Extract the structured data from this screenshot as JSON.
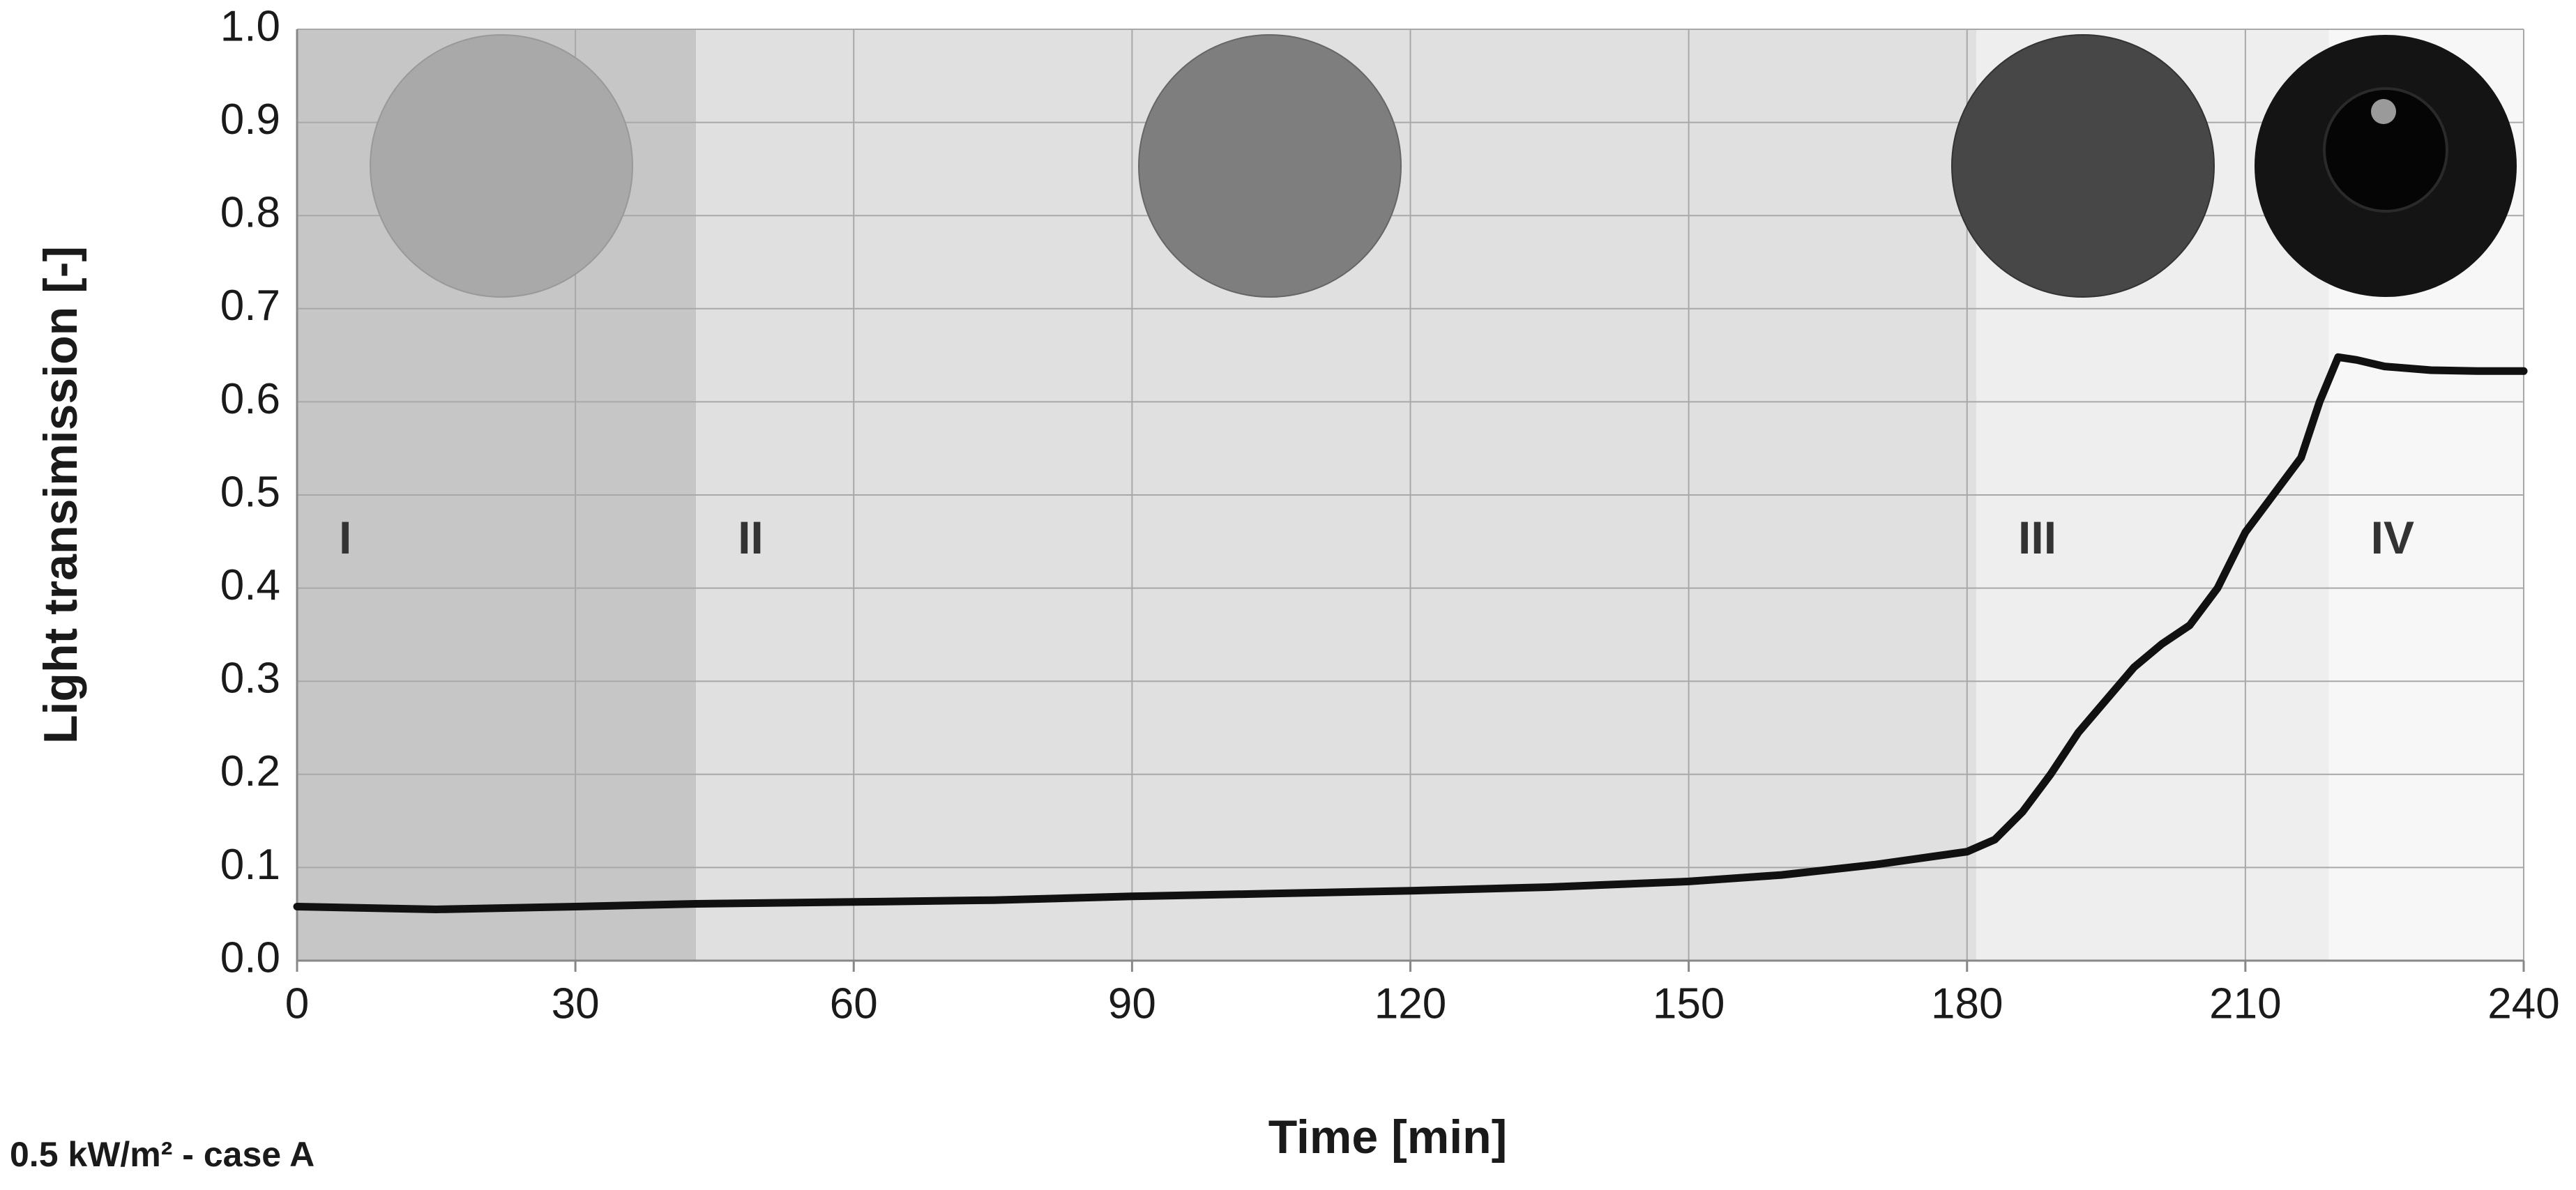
{
  "chart_data": {
    "type": "line",
    "caption": "0.5 kW/m² - case A",
    "xlabel": "Time [min]",
    "ylabel": "Light transimission [-]",
    "xlim": [
      0,
      240
    ],
    "xticks": [
      0,
      30,
      60,
      90,
      120,
      150,
      180,
      210,
      240
    ],
    "ylim": [
      0,
      1
    ],
    "yticks": [
      {
        "value": 0,
        "label": "0.0"
      },
      0.1,
      0.2,
      0.3,
      0.4,
      0.5,
      0.6,
      0.7,
      0.8,
      0.9,
      {
        "value": 1,
        "label": "1.0"
      }
    ],
    "grid": true,
    "phases": [
      {
        "label": "I",
        "start": 0,
        "end": 43,
        "color": "#c6c6c6"
      },
      {
        "label": "II",
        "start": 43,
        "end": 181,
        "color": "#e0e0e0"
      },
      {
        "label": "III",
        "start": 181,
        "end": 219,
        "color": "#eeeeee"
      },
      {
        "label": "IV",
        "start": 219,
        "end": 240,
        "color": "#f7f7f7"
      }
    ],
    "series": [
      {
        "name": "Light transmission",
        "color": "#111111",
        "x": [
          0,
          15,
          30,
          43,
          60,
          75,
          90,
          105,
          120,
          135,
          150,
          160,
          170,
          180,
          183,
          186,
          189,
          192,
          195,
          198,
          201,
          204,
          207,
          210,
          213,
          216,
          218,
          220,
          222,
          225,
          230,
          235,
          240
        ],
        "values": [
          0.058,
          0.055,
          0.058,
          0.061,
          0.063,
          0.065,
          0.069,
          0.072,
          0.075,
          0.079,
          0.085,
          0.092,
          0.103,
          0.117,
          0.13,
          0.16,
          0.2,
          0.245,
          0.28,
          0.315,
          0.34,
          0.36,
          0.4,
          0.46,
          0.5,
          0.54,
          0.6,
          0.648,
          0.645,
          0.638,
          0.634,
          0.633,
          0.633
        ]
      }
    ]
  }
}
